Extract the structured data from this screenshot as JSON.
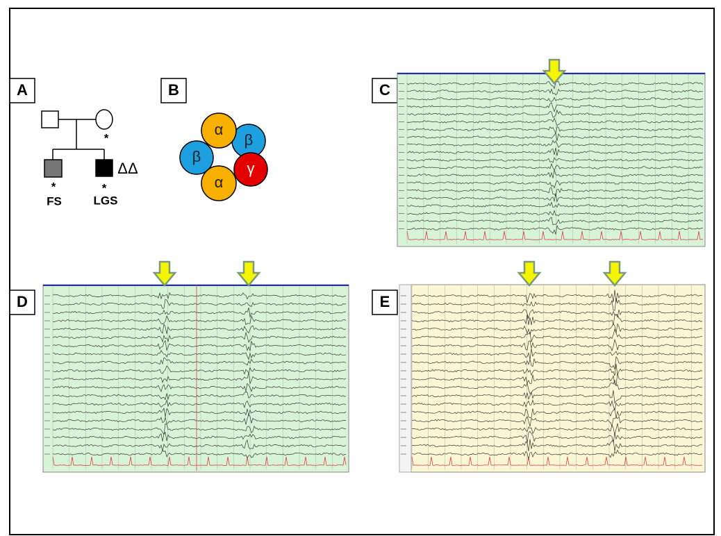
{
  "panels": [
    "A",
    "B",
    "C",
    "D",
    "E"
  ],
  "pedigree": {
    "asterisks": [
      "*",
      "*",
      "*"
    ],
    "labels": [
      "FS",
      "LGS"
    ],
    "deletion_marker": "ΔΔ"
  },
  "subunits": [
    "α",
    "β",
    "β",
    "γ",
    "α"
  ]
}
